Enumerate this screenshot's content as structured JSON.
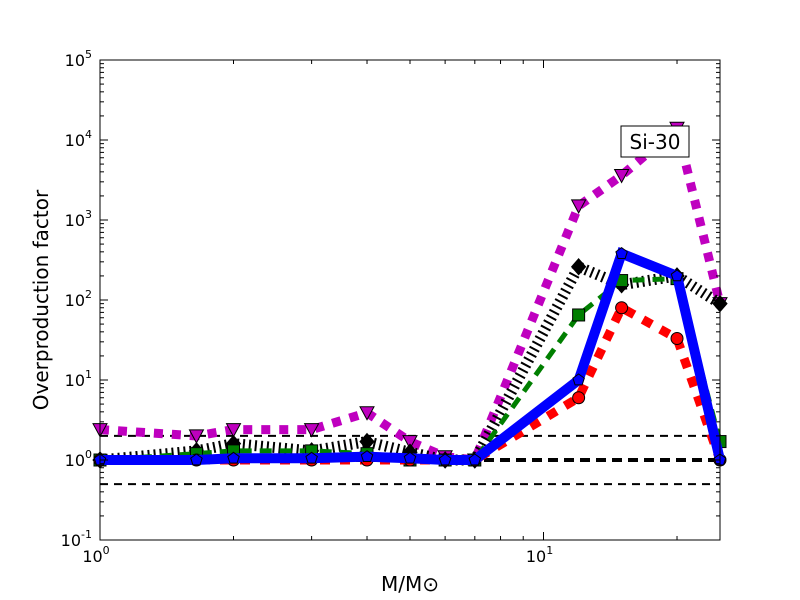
{
  "chart_data": {
    "type": "line",
    "title": "",
    "annotation": "Si-30",
    "xlabel": "M/M⊙",
    "ylabel": "Overproduction factor",
    "xscale": "log",
    "yscale": "log",
    "xlim": [
      1,
      25
    ],
    "ylim": [
      0.1,
      100000
    ],
    "x_ticks": [
      {
        "v": 1,
        "base": "10",
        "exp": "0"
      },
      {
        "v": 10,
        "base": "10",
        "exp": "1"
      }
    ],
    "y_ticks": [
      {
        "v": 0.1,
        "base": "10",
        "exp": "-1"
      },
      {
        "v": 1,
        "base": "10",
        "exp": "0"
      },
      {
        "v": 10,
        "base": "10",
        "exp": "1"
      },
      {
        "v": 100,
        "base": "10",
        "exp": "2"
      },
      {
        "v": 1000,
        "base": "10",
        "exp": "3"
      },
      {
        "v": 10000,
        "base": "10",
        "exp": "4"
      },
      {
        "v": 100000,
        "base": "10",
        "exp": "5"
      }
    ],
    "reference_lines": [
      2,
      1,
      0.5
    ],
    "x": [
      1,
      1.65,
      2,
      3,
      4,
      5,
      6,
      7,
      12,
      15,
      20,
      25
    ],
    "series": [
      {
        "name": "magenta",
        "color": "#bf00bf",
        "style": "dotted",
        "marker": "triangle-down",
        "values": [
          2.4,
          2.0,
          2.4,
          2.4,
          3.9,
          1.7,
          1.1,
          1.0,
          1500,
          3600,
          14000,
          90
        ]
      },
      {
        "name": "black",
        "color": "#000000",
        "style": "dotted-thin",
        "marker": "diamond",
        "values": [
          1.0,
          1.3,
          1.6,
          1.3,
          1.7,
          1.25,
          1.0,
          1.0,
          260,
          155,
          200,
          90
        ]
      },
      {
        "name": "green",
        "color": "#007f00",
        "style": "dashed",
        "marker": "square",
        "values": [
          1.0,
          1.2,
          1.3,
          1.3,
          1.2,
          1.0,
          1.0,
          1.0,
          65,
          175,
          185,
          1.7
        ]
      },
      {
        "name": "red",
        "color": "#ff0000",
        "style": "dashed-thick",
        "marker": "circle",
        "values": [
          1.0,
          1.0,
          1.0,
          1.0,
          1.0,
          1.0,
          1.0,
          1.0,
          6,
          80,
          33,
          1.0
        ]
      },
      {
        "name": "blue",
        "color": "#0000ff",
        "style": "solid",
        "marker": "pentagon",
        "values": [
          1.0,
          1.0,
          1.05,
          1.05,
          1.1,
          1.05,
          1.0,
          1.0,
          10,
          380,
          200,
          1.0
        ]
      }
    ]
  }
}
